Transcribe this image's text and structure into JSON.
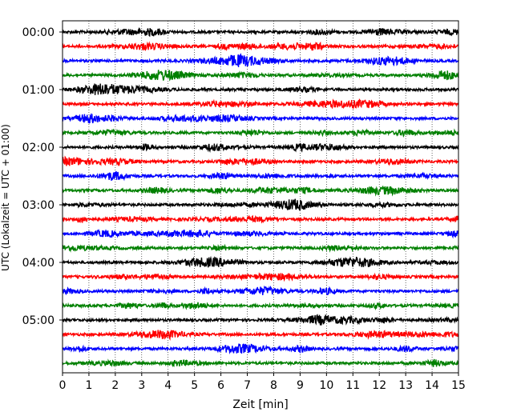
{
  "chart_data": {
    "type": "line",
    "title": "",
    "xlabel": "Zeit  [min]",
    "ylabel": "UTC (Lokalzeit = UTC + 01:00)",
    "xlim": [
      0,
      15
    ],
    "x_ticks": [
      "0",
      "1",
      "2",
      "3",
      "4",
      "5",
      "6",
      "7",
      "8",
      "9",
      "10",
      "11",
      "12",
      "13",
      "14",
      "15"
    ],
    "y_tick_labels": [
      "00:00",
      "01:00",
      "02:00",
      "03:00",
      "04:00",
      "05:00"
    ],
    "grid": "vertical dotted lines at each minute",
    "trace_interval_minutes": 15,
    "trace_colors": [
      "#000000",
      "#ff0000",
      "#0000ff",
      "#008000"
    ],
    "traces": [
      {
        "start": "00:00"
      },
      {
        "start": "00:15"
      },
      {
        "start": "00:30"
      },
      {
        "start": "00:45"
      },
      {
        "start": "01:00"
      },
      {
        "start": "01:15"
      },
      {
        "start": "01:30"
      },
      {
        "start": "01:45"
      },
      {
        "start": "02:00"
      },
      {
        "start": "02:15"
      },
      {
        "start": "02:30"
      },
      {
        "start": "02:45"
      },
      {
        "start": "03:00"
      },
      {
        "start": "03:15"
      },
      {
        "start": "03:30"
      },
      {
        "start": "03:45"
      },
      {
        "start": "04:00"
      },
      {
        "start": "04:15"
      },
      {
        "start": "04:30"
      },
      {
        "start": "04:45"
      },
      {
        "start": "05:00"
      },
      {
        "start": "05:15"
      },
      {
        "start": "05:30"
      },
      {
        "start": "05:45"
      }
    ]
  }
}
